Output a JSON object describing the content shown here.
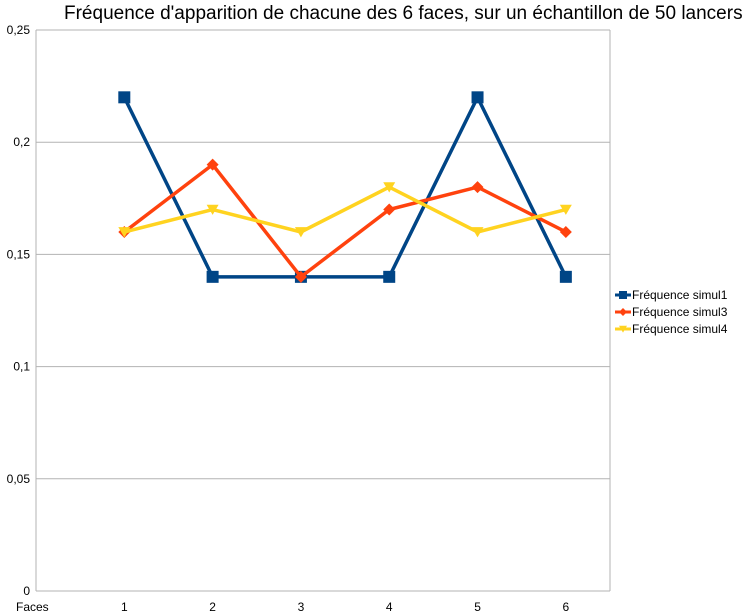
{
  "chart_data": {
    "type": "line",
    "title": "Fréquence d'apparition de chacune des 6 faces, sur un échantillon de 50 lancers",
    "xlabel": "",
    "ylabel": "",
    "x_first_label": "Faces",
    "categories": [
      "1",
      "2",
      "3",
      "4",
      "5",
      "6"
    ],
    "ylim": [
      0,
      0.25
    ],
    "yticks": [
      0,
      0.05,
      0.1,
      0.15,
      0.2,
      0.25
    ],
    "ytick_labels": [
      "0",
      "0,05",
      "0,1",
      "0,15",
      "0,2",
      "0,25"
    ],
    "grid": "horizontal",
    "legend_position": "right",
    "series": [
      {
        "name": "Fréquence simul1",
        "color": "#004586",
        "marker": "square",
        "values": [
          0.22,
          0.14,
          0.14,
          0.14,
          0.22,
          0.14
        ]
      },
      {
        "name": "Fréquence simul3",
        "color": "#ff420e",
        "marker": "diamond",
        "values": [
          0.16,
          0.19,
          0.14,
          0.17,
          0.18,
          0.16
        ]
      },
      {
        "name": "Fréquence simul4",
        "color": "#ffd320",
        "marker": "triangle-down",
        "values": [
          0.16,
          0.17,
          0.16,
          0.18,
          0.16,
          0.17
        ]
      }
    ]
  }
}
